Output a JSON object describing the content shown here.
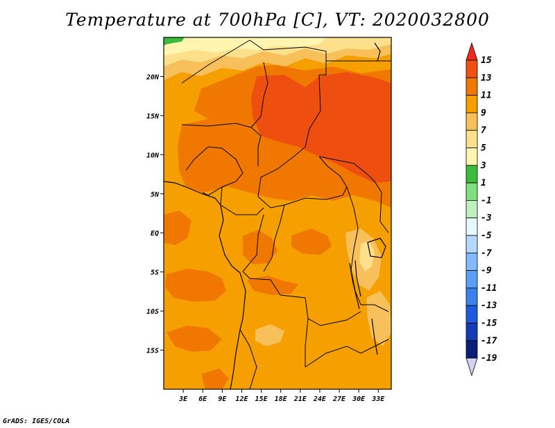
{
  "title": "Temperature at 700hPa [C], VT: 2020032800",
  "credit": "GrADS: IGES/COLA",
  "colors": {
    "background": "#ffffff",
    "base_fill": "#f5a000",
    "warm_11_13": "#f07800",
    "hot_13_15": "#ee4f10",
    "cool_7_9": "#f8c05a",
    "cool_5_7": "#fde08c",
    "cool_3_5": "#fff4b0",
    "green_1_3": "#3cbc3c",
    "border_lines": "#000000"
  },
  "map": {
    "region": "Central Africa",
    "lon_range": [
      0,
      35
    ],
    "lat_range": [
      -20,
      25
    ],
    "x_tick_labels": [
      "3E",
      "6E",
      "9E",
      "12E",
      "15E",
      "18E",
      "21E",
      "24E",
      "27E",
      "30E",
      "33E"
    ],
    "y_tick_labels": [
      "20N",
      "15N",
      "10N",
      "5N",
      "EQ",
      "5S",
      "10S",
      "15S"
    ]
  },
  "colorbar": {
    "labels": [
      "15",
      "13",
      "11",
      "9",
      "7",
      "5",
      "3",
      "1",
      "-1",
      "-3",
      "-5",
      "-7",
      "-9",
      "-11",
      "-13",
      "-15",
      "-17",
      "-19"
    ],
    "colors": [
      "#f0281e",
      "#f05014",
      "#f07800",
      "#f5a000",
      "#f8c05a",
      "#fde08c",
      "#fff4b0",
      "#3cbc3c",
      "#7fe07f",
      "#c0f0c0",
      "#e8f8ff",
      "#b4d8ff",
      "#82b9ff",
      "#5a9ef5",
      "#3c82eb",
      "#1e5adc",
      "#143cb4",
      "#0a1e78",
      "#d2d2f5"
    ]
  }
}
